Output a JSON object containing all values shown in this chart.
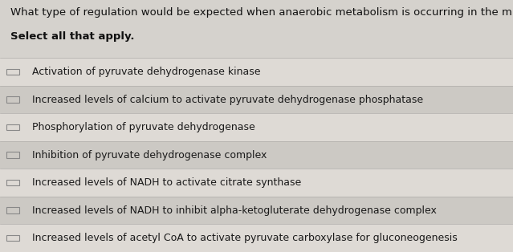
{
  "title_line1": "What type of regulation would be expected when anaerobic metabolism is occurring in the muscle?",
  "title_line2": "Select all that apply.",
  "options": [
    "Activation of pyruvate dehydrogenase kinase",
    "Increased levels of calcium to activate pyruvate dehydrogenase phosphatase",
    "Phosphorylation of pyruvate dehydrogenase",
    "Inhibition of pyruvate dehydrogenase complex",
    "Increased levels of NADH to activate citrate synthase",
    "Increased levels of NADH to inhibit alpha-ketogluterate dehydrogenase complex",
    "Increased levels of acetyl CoA to activate pyruvate carboxylase for gluconeogenesis"
  ],
  "bg_color": "#d5d2cd",
  "row_colors": [
    "#dedad5",
    "#ccc9c4"
  ],
  "text_color": "#1a1a1a",
  "title_color": "#111111",
  "checkbox_color": "#888888",
  "divider_color": "#b0adaa",
  "font_size_title": 9.5,
  "font_size_options": 9.0,
  "fig_width": 6.39,
  "fig_height": 3.14
}
